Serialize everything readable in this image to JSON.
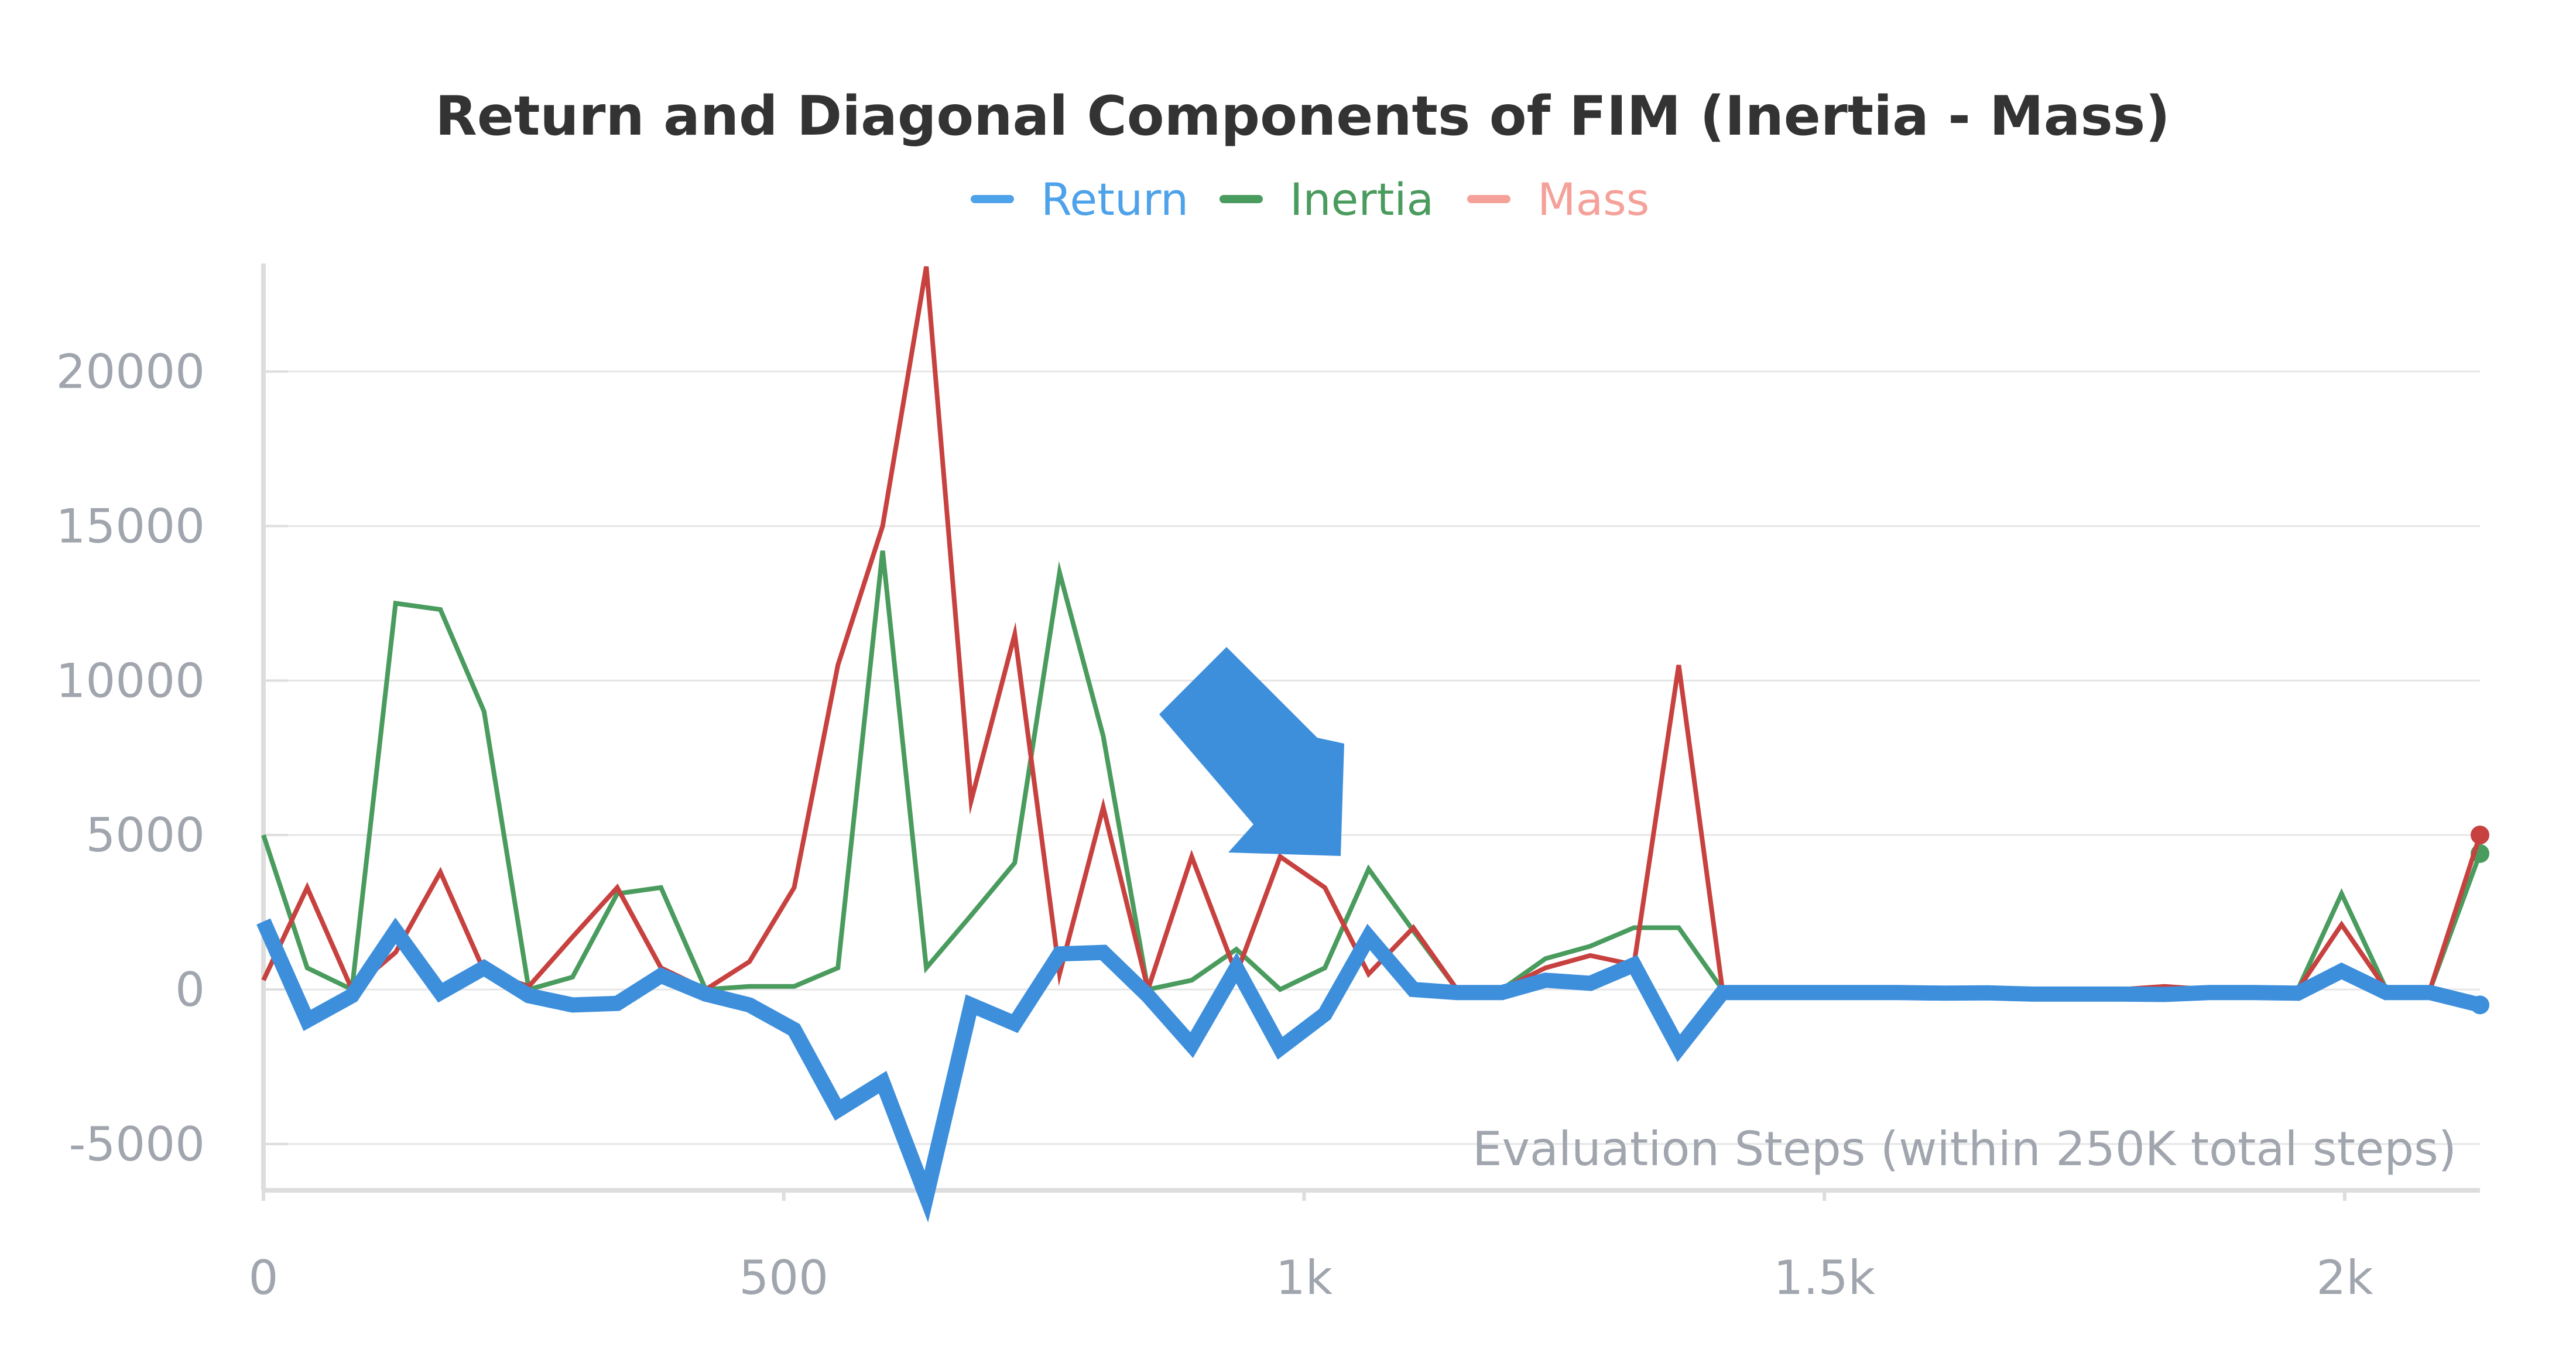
{
  "chart_data": {
    "type": "line",
    "title": "Return and Diagonal Components of FIM (Inertia - Mass)",
    "xlabel": "Evaluation Steps (within 250K total steps)",
    "ylabel": "",
    "xlim": [
      0,
      2130
    ],
    "ylim": [
      -6500,
      23500
    ],
    "grid": true,
    "legend": "top-center",
    "x_ticks": [
      {
        "value": 0,
        "label": "0"
      },
      {
        "value": 500,
        "label": "500"
      },
      {
        "value": 1000,
        "label": "1k"
      },
      {
        "value": 1500,
        "label": "1.5k"
      },
      {
        "value": 2000,
        "label": "2k"
      }
    ],
    "y_ticks": [
      {
        "value": -5000,
        "label": "-5000"
      },
      {
        "value": 0,
        "label": "0"
      },
      {
        "value": 5000,
        "label": "5000"
      },
      {
        "value": 10000,
        "label": "10000"
      },
      {
        "value": 15000,
        "label": "15000"
      },
      {
        "value": 20000,
        "label": "20000"
      }
    ],
    "x": [
      0,
      42,
      85,
      127,
      170,
      212,
      255,
      297,
      340,
      382,
      425,
      467,
      510,
      552,
      595,
      637,
      680,
      722,
      765,
      807,
      850,
      892,
      935,
      977,
      1020,
      1062,
      1105,
      1147,
      1190,
      1232,
      1275,
      1317,
      1360,
      1402,
      1445,
      1487,
      1530,
      1572,
      1615,
      1657,
      1700,
      1742,
      1785,
      1827,
      1870,
      1912,
      1955,
      1997,
      2040,
      2082,
      2130
    ],
    "series": [
      {
        "name": "Return",
        "color": "#3d8fdc",
        "values": [
          2200,
          -1000,
          -200,
          1900,
          -100,
          700,
          -200,
          -500,
          -450,
          450,
          -150,
          -500,
          -1300,
          -3900,
          -3000,
          -6700,
          -500,
          -1100,
          1150,
          1200,
          -200,
          -1800,
          700,
          -1900,
          -800,
          1700,
          0,
          -100,
          -100,
          300,
          200,
          800,
          -1900,
          -100,
          -100,
          -100,
          -100,
          -100,
          -120,
          -110,
          -150,
          -150,
          -150,
          -160,
          -100,
          -100,
          -120,
          600,
          -100,
          -100,
          -500
        ]
      },
      {
        "name": "Inertia",
        "color": "#4a9b5e",
        "values": [
          5000,
          700,
          0,
          12500,
          12300,
          9000,
          0,
          400,
          3100,
          3300,
          0,
          100,
          100,
          700,
          14200,
          700,
          2400,
          4100,
          13500,
          8200,
          0,
          300,
          1300,
          0,
          700,
          3900,
          1900,
          0,
          0,
          1000,
          1400,
          2000,
          2000,
          0,
          0,
          0,
          0,
          0,
          0,
          0,
          0,
          0,
          0,
          0,
          0,
          0,
          0,
          3100,
          0,
          0,
          4400
        ]
      },
      {
        "name": "Mass",
        "color": "#c7413f",
        "values": [
          300,
          3300,
          0,
          1200,
          3800,
          600,
          100,
          1700,
          3300,
          700,
          0,
          900,
          3300,
          10500,
          15000,
          23400,
          6100,
          11500,
          500,
          5900,
          0,
          4300,
          500,
          4300,
          3300,
          500,
          2000,
          0,
          0,
          700,
          1100,
          800,
          10500,
          0,
          0,
          0,
          0,
          0,
          0,
          0,
          0,
          0,
          0,
          100,
          0,
          0,
          0,
          2100,
          0,
          0,
          5000
        ]
      }
    ]
  },
  "legend": {
    "items": [
      {
        "label": "Return",
        "color": "#4ea2ea"
      },
      {
        "label": "Inertia",
        "color": "#4a9b5e"
      },
      {
        "label": "Mass",
        "color": "#f5a19a"
      }
    ]
  },
  "annotation": {
    "icon": "arrow-down-right-icon",
    "color": "#3d8fdc"
  }
}
